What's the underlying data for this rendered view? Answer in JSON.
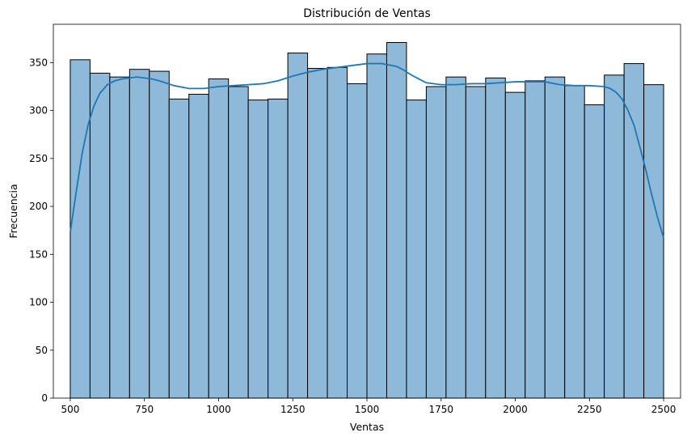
{
  "chart_data": {
    "type": "bar",
    "subtype": "histogram-with-kde",
    "title": "Distribución de Ventas",
    "xlabel": "Ventas",
    "ylabel": "Frecuencia",
    "xlim": [
      443,
      2557
    ],
    "ylim": [
      0,
      390
    ],
    "xticks": [
      500,
      750,
      1000,
      1250,
      1500,
      1750,
      2000,
      2250,
      2500
    ],
    "yticks": [
      0,
      50,
      100,
      150,
      200,
      250,
      300,
      350
    ],
    "grid": false,
    "bin_start": 500,
    "bin_end": 2500,
    "counts": [
      353,
      339,
      335,
      343,
      341,
      312,
      317,
      333,
      325,
      311,
      312,
      360,
      344,
      345,
      328,
      359,
      371,
      311,
      325,
      335,
      325,
      334,
      319,
      331,
      335,
      326,
      306,
      337,
      349,
      327
    ],
    "kde": {
      "x": [
        500,
        520,
        540,
        560,
        580,
        600,
        625,
        650,
        675,
        700,
        725,
        750,
        775,
        800,
        850,
        900,
        950,
        1000,
        1050,
        1100,
        1150,
        1200,
        1250,
        1300,
        1350,
        1400,
        1450,
        1500,
        1550,
        1600,
        1625,
        1650,
        1675,
        1700,
        1750,
        1800,
        1850,
        1900,
        1950,
        2000,
        2050,
        2100,
        2150,
        2200,
        2250,
        2300,
        2320,
        2340,
        2360,
        2380,
        2400,
        2420,
        2440,
        2460,
        2480,
        2500
      ],
      "y": [
        173,
        215,
        255,
        285,
        305,
        318,
        327,
        331,
        333,
        334,
        335,
        334,
        333,
        331,
        326,
        323,
        323,
        325,
        326,
        327,
        328,
        331,
        336,
        340,
        343,
        345,
        347,
        349,
        349,
        346,
        342,
        337,
        333,
        329,
        327,
        327,
        328,
        328,
        329,
        330,
        330,
        330,
        327,
        326,
        326,
        325,
        323,
        319,
        312,
        300,
        285,
        262,
        238,
        212,
        188,
        167
      ]
    },
    "bar_color": "#8fb9d8",
    "bar_edge_color": "#000000",
    "kde_color": "#1f77b4"
  }
}
